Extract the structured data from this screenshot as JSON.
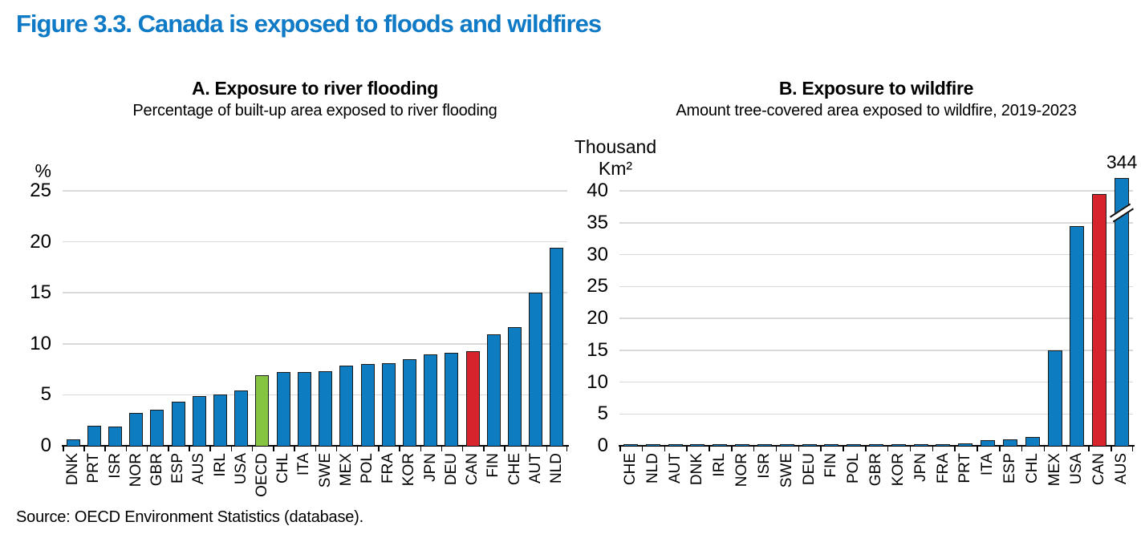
{
  "page": {
    "title": "Figure 3.3. Canada is exposed to floods and wildfires",
    "source": "Source: OECD Environment Statistics (database)."
  },
  "colors": {
    "title_blue": "#0f7ac5",
    "bar_blue": "#0d7cc1",
    "bar_green": "#85c441",
    "bar_red": "#d6232c",
    "bar_border": "#1a1a1a",
    "grid_gray": "#d9d9d9",
    "axis_black": "#000000"
  },
  "chart_data": [
    {
      "type": "bar",
      "panel_label": "A",
      "title": "A. Exposure to river flooding",
      "subtitle": "Percentage of built-up area exposed to river flooding",
      "unit_lines": [
        "%"
      ],
      "ylim": [
        0,
        25
      ],
      "yticks": [
        0,
        5,
        10,
        15,
        20,
        25
      ],
      "grid": true,
      "legend_position": "none",
      "categories": [
        "DNK",
        "PRT",
        "ISR",
        "NOR",
        "GBR",
        "ESP",
        "AUS",
        "IRL",
        "USA",
        "OECD",
        "CHL",
        "ITA",
        "SWE",
        "MEX",
        "POL",
        "FRA",
        "KOR",
        "JPN",
        "DEU",
        "CAN",
        "FIN",
        "CHE",
        "AUT",
        "NLD"
      ],
      "values": [
        0.6,
        2.0,
        1.9,
        3.2,
        3.5,
        4.3,
        4.9,
        5.0,
        5.4,
        6.9,
        7.2,
        7.2,
        7.3,
        7.9,
        8.0,
        8.1,
        8.5,
        9.0,
        9.1,
        9.3,
        10.9,
        11.6,
        15.0,
        19.4
      ],
      "highlight": {
        "OECD": "green",
        "CAN": "red"
      }
    },
    {
      "type": "bar",
      "panel_label": "B",
      "title": "B. Exposure to wildfire",
      "subtitle": "Amount tree-covered area exposed to wildfire, 2019-2023",
      "unit_lines": [
        "Thousand",
        "Km²"
      ],
      "ylim": [
        0,
        40
      ],
      "yticks": [
        0,
        5,
        10,
        15,
        20,
        25,
        30,
        35,
        40
      ],
      "grid": true,
      "legend_position": "none",
      "categories": [
        "CHE",
        "NLD",
        "AUT",
        "DNK",
        "IRL",
        "NOR",
        "ISR",
        "SWE",
        "DEU",
        "FIN",
        "POL",
        "GBR",
        "KOR",
        "JPN",
        "FRA",
        "PRT",
        "ITA",
        "ESP",
        "CHL",
        "MEX",
        "USA",
        "CAN",
        "AUS"
      ],
      "values": [
        0.02,
        0.03,
        0.03,
        0.04,
        0.04,
        0.05,
        0.05,
        0.06,
        0.07,
        0.08,
        0.09,
        0.1,
        0.12,
        0.2,
        0.25,
        0.4,
        0.9,
        1.0,
        1.4,
        15.0,
        34.5,
        39.5,
        344
      ],
      "highlight": {
        "CAN": "red"
      },
      "annotations": [
        {
          "category": "AUS",
          "label": "344",
          "display_value": 42,
          "axis_break_at": 36
        }
      ]
    }
  ]
}
